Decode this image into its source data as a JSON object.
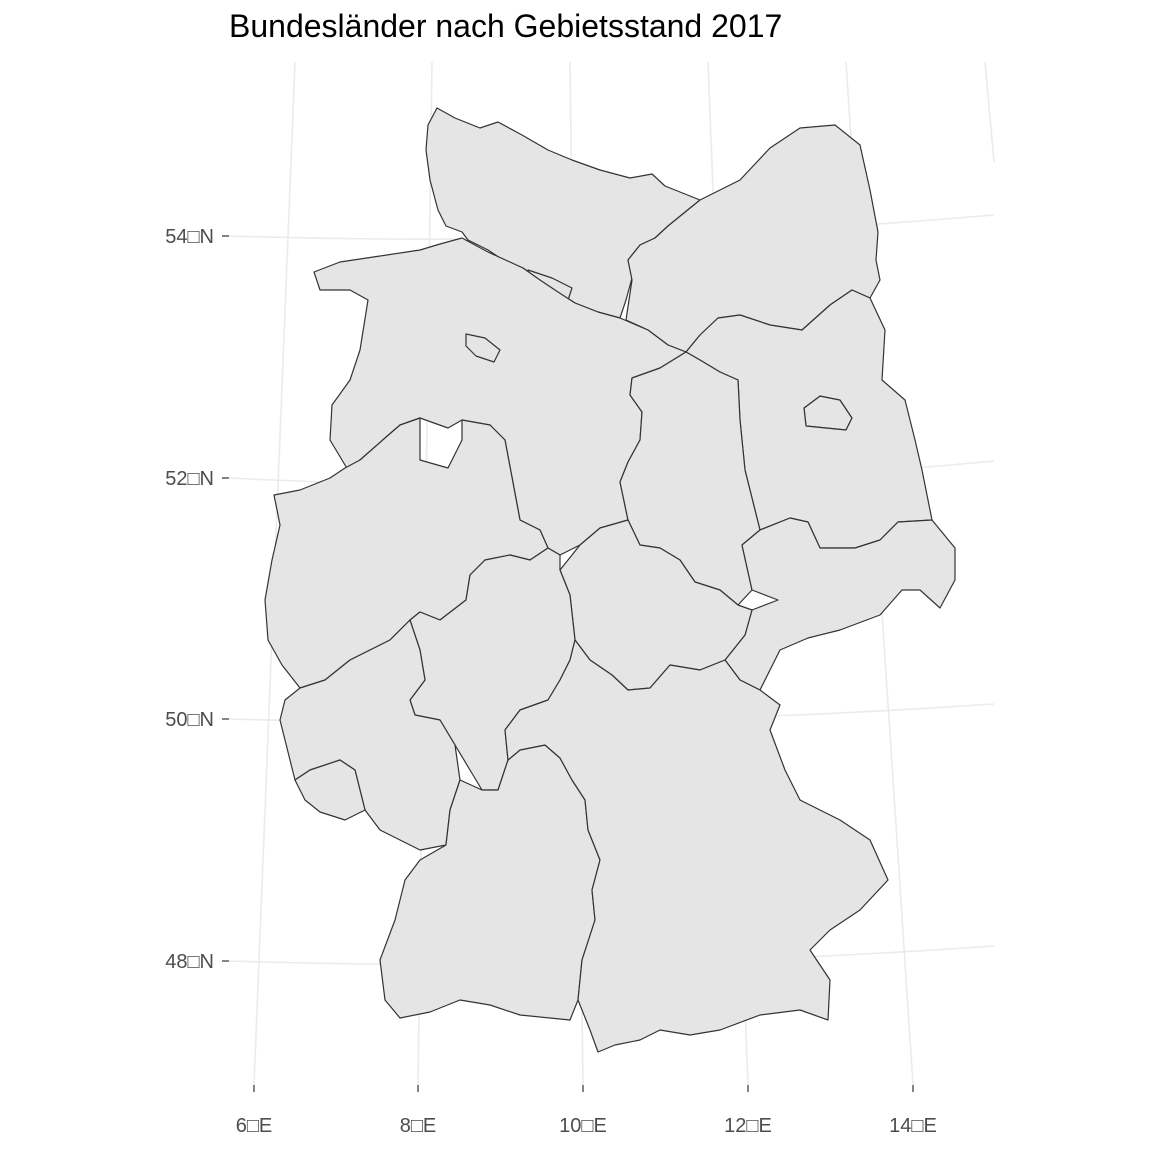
{
  "title": "Bundesländer nach Gebietsstand 2017",
  "axis": {
    "lat_ticks": [
      "54□N",
      "52□N",
      "50□N",
      "48□N"
    ],
    "lon_ticks": [
      "6□E",
      "8□E",
      "10□E",
      "12□E",
      "14□E"
    ]
  },
  "colors": {
    "background": "#ffffff",
    "grid": "#ebebeb",
    "fill": "#e5e5e5",
    "border": "#333333",
    "axis_text": "#4d4d4d"
  }
}
